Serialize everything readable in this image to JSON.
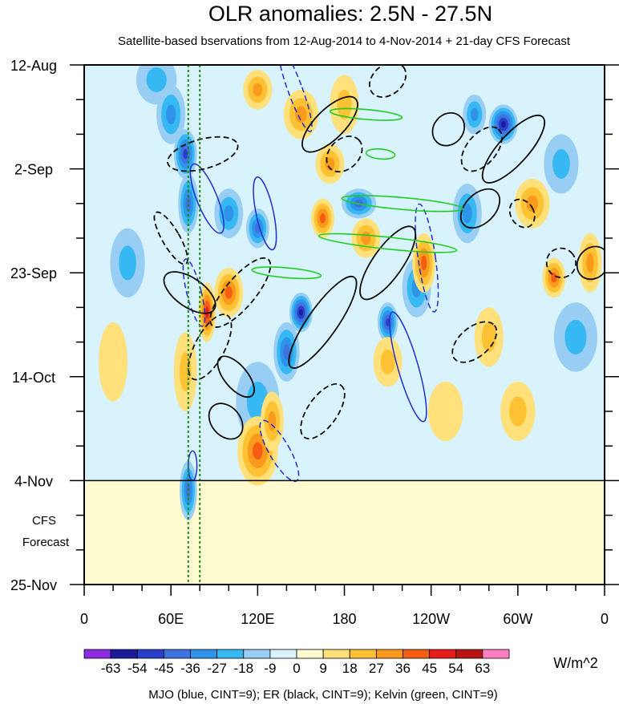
{
  "chart_data": {
    "type": "heatmap",
    "title": "OLR anomalies: 2.5N - 27.5N",
    "subtitle": "Satellite-based bservations from 12-Aug-2014 to 4-Nov-2014 + 21-day CFS Forecast",
    "xlabel": "",
    "ylabel": "",
    "x_ticks": [
      {
        "lon": 0,
        "label": "0"
      },
      {
        "lon": 60,
        "label": "60E"
      },
      {
        "lon": 120,
        "label": "120E"
      },
      {
        "lon": 180,
        "label": "180"
      },
      {
        "lon": 240,
        "label": "120W"
      },
      {
        "lon": 300,
        "label": "60W"
      },
      {
        "lon": 360,
        "label": "0"
      }
    ],
    "xlim": [
      0,
      360
    ],
    "y_ticks": [
      {
        "day": 0,
        "label": "12-Aug"
      },
      {
        "day": 21,
        "label": "2-Sep"
      },
      {
        "day": 42,
        "label": "23-Sep"
      },
      {
        "day": 63,
        "label": "14-Oct"
      },
      {
        "day": 84,
        "label": "4-Nov"
      },
      {
        "day": 105,
        "label": "25-Nov"
      }
    ],
    "ylim_days": [
      0,
      105
    ],
    "forecast_start_day": 84,
    "forecast_label_line1": "CFS",
    "forecast_label_line2": "Forecast",
    "reference_lines_lon": [
      72,
      80
    ],
    "colorbar": {
      "levels": [
        "-63",
        "-54",
        "-45",
        "-36",
        "-27",
        "-18",
        "-9",
        "0",
        "9",
        "18",
        "27",
        "36",
        "45",
        "54",
        "63"
      ],
      "colors": [
        "#8c2be2",
        "#1b1b9c",
        "#2a3fc8",
        "#3d72e0",
        "#2f93ea",
        "#36b8f2",
        "#98cdf4",
        "#d8f3fc",
        "#fffbd0",
        "#ffe07a",
        "#fdc233",
        "#f99a1c",
        "#f45d12",
        "#e51c18",
        "#b81414",
        "#ff80c0"
      ],
      "units": "W/m^2"
    },
    "legend_text": "MJO (blue, CINT=9); ER (black, CINT=9); Kelvin (green, CINT=9)",
    "contour_colors": {
      "mjo": "#1f2fd0",
      "er": "#000000",
      "kelvin": "#22cc22"
    },
    "anomaly_blobs": [
      {
        "lon": 50,
        "day": 3,
        "val": -25,
        "rl": 14,
        "rd": 5
      },
      {
        "lon": 60,
        "day": 10,
        "val": -30,
        "rl": 10,
        "rd": 6
      },
      {
        "lon": 70,
        "day": 18,
        "val": -45,
        "rl": 8,
        "rd": 5
      },
      {
        "lon": 72,
        "day": 28,
        "val": -40,
        "rl": 7,
        "rd": 6
      },
      {
        "lon": 72,
        "day": 86,
        "val": -40,
        "rl": 6,
        "rd": 6
      },
      {
        "lon": 100,
        "day": 30,
        "val": -35,
        "rl": 10,
        "rd": 5
      },
      {
        "lon": 120,
        "day": 33,
        "val": -40,
        "rl": 8,
        "rd": 4
      },
      {
        "lon": 150,
        "day": 50,
        "val": -55,
        "rl": 8,
        "rd": 4
      },
      {
        "lon": 140,
        "day": 58,
        "val": -40,
        "rl": 9,
        "rd": 6
      },
      {
        "lon": 210,
        "day": 52,
        "val": -45,
        "rl": 7,
        "rd": 4
      },
      {
        "lon": 230,
        "day": 45,
        "val": -30,
        "rl": 10,
        "rd": 6
      },
      {
        "lon": 290,
        "day": 12,
        "val": -55,
        "rl": 10,
        "rd": 4
      },
      {
        "lon": 270,
        "day": 10,
        "val": -35,
        "rl": 8,
        "rd": 4
      },
      {
        "lon": 265,
        "day": 30,
        "val": -30,
        "rl": 10,
        "rd": 6
      },
      {
        "lon": 190,
        "day": 28,
        "val": -36,
        "rl": 12,
        "rd": 3
      },
      {
        "lon": 120,
        "day": 68,
        "val": -25,
        "rl": 15,
        "rd": 8
      },
      {
        "lon": 30,
        "day": 40,
        "val": -25,
        "rl": 12,
        "rd": 7
      },
      {
        "lon": 340,
        "day": 55,
        "val": -20,
        "rl": 15,
        "rd": 7
      },
      {
        "lon": 330,
        "day": 20,
        "val": -25,
        "rl": 12,
        "rd": 6
      },
      {
        "lon": 150,
        "day": 10,
        "val": 30,
        "rl": 12,
        "rd": 5
      },
      {
        "lon": 170,
        "day": 20,
        "val": 30,
        "rl": 10,
        "rd": 4
      },
      {
        "lon": 180,
        "day": 8,
        "val": 25,
        "rl": 10,
        "rd": 6
      },
      {
        "lon": 165,
        "day": 31,
        "val": 40,
        "rl": 8,
        "rd": 4
      },
      {
        "lon": 195,
        "day": 35,
        "val": 30,
        "rl": 10,
        "rd": 4
      },
      {
        "lon": 85,
        "day": 50,
        "val": 50,
        "rl": 6,
        "rd": 6
      },
      {
        "lon": 100,
        "day": 46,
        "val": 36,
        "rl": 10,
        "rd": 5
      },
      {
        "lon": 70,
        "day": 62,
        "val": 25,
        "rl": 8,
        "rd": 8
      },
      {
        "lon": 120,
        "day": 78,
        "val": 36,
        "rl": 14,
        "rd": 7
      },
      {
        "lon": 130,
        "day": 72,
        "val": 30,
        "rl": 8,
        "rd": 6
      },
      {
        "lon": 235,
        "day": 40,
        "val": 36,
        "rl": 8,
        "rd": 6
      },
      {
        "lon": 310,
        "day": 28,
        "val": 28,
        "rl": 12,
        "rd": 5
      },
      {
        "lon": 325,
        "day": 43,
        "val": 36,
        "rl": 8,
        "rd": 4
      },
      {
        "lon": 350,
        "day": 40,
        "val": 28,
        "rl": 8,
        "rd": 6
      },
      {
        "lon": 280,
        "day": 55,
        "val": 25,
        "rl": 10,
        "rd": 6
      },
      {
        "lon": 120,
        "day": 5,
        "val": 30,
        "rl": 10,
        "rd": 4
      },
      {
        "lon": 210,
        "day": 60,
        "val": 20,
        "rl": 10,
        "rd": 5
      },
      {
        "lon": 20,
        "day": 60,
        "val": 15,
        "rl": 10,
        "rd": 8
      },
      {
        "lon": 300,
        "day": 70,
        "val": 18,
        "rl": 12,
        "rd": 6
      },
      {
        "lon": 250,
        "day": 70,
        "val": 15,
        "rl": 12,
        "rd": 6
      }
    ],
    "mjo_contours": [
      {
        "lon": 146,
        "day": 5,
        "rl": 5,
        "rd": 9,
        "tilt": -20,
        "dash": true
      },
      {
        "lon": 85,
        "day": 27,
        "rl": 7,
        "rd": 7.5,
        "tilt": -22,
        "dash": false
      },
      {
        "lon": 125,
        "day": 30,
        "rl": 6,
        "rd": 7.5,
        "tilt": -12,
        "dash": false
      },
      {
        "lon": 76,
        "day": 46,
        "rl": 5,
        "rd": 7,
        "tilt": -14,
        "dash": true
      },
      {
        "lon": 237,
        "day": 39,
        "rl": 6,
        "rd": 11,
        "tilt": -8,
        "dash": true
      },
      {
        "lon": 224,
        "day": 61,
        "rl": 7,
        "rd": 11.5,
        "tilt": -16,
        "dash": false
      },
      {
        "lon": 135,
        "day": 78,
        "rl": 7,
        "rd": 7,
        "tilt": -30,
        "dash": true
      },
      {
        "lon": 75,
        "day": 81,
        "rl": 3,
        "rd": 3,
        "tilt": 0,
        "dash": false
      }
    ],
    "er_contours": [
      {
        "lon": 82,
        "day": 18,
        "rl": 25,
        "rd": 3,
        "tilt": -15,
        "dash": true
      },
      {
        "lon": 60,
        "day": 35,
        "rl": 6,
        "rd": 6,
        "tilt": -30,
        "dash": true
      },
      {
        "lon": 73,
        "day": 46,
        "rl": 10,
        "rd": 6,
        "tilt": -55,
        "dash": false
      },
      {
        "lon": 108,
        "day": 46,
        "rl": 30,
        "rd": 3,
        "tilt": -50,
        "dash": true
      },
      {
        "lon": 87,
        "day": 57,
        "rl": 25,
        "rd": 3,
        "tilt": -62,
        "dash": true
      },
      {
        "lon": 105,
        "day": 63,
        "rl": 8,
        "rd": 5,
        "tilt": -40,
        "dash": false
      },
      {
        "lon": 98,
        "day": 72,
        "rl": 10,
        "rd": 4,
        "tilt": -40,
        "dash": false
      },
      {
        "lon": 165,
        "day": 52,
        "rl": 38,
        "rd": 3,
        "tilt": -55,
        "dash": false
      },
      {
        "lon": 170,
        "day": 12,
        "rl": 25,
        "rd": 3,
        "tilt": -45,
        "dash": false
      },
      {
        "lon": 180,
        "day": 18,
        "rl": 14,
        "rd": 3,
        "tilt": -45,
        "dash": true
      },
      {
        "lon": 210,
        "day": 40,
        "rl": 30,
        "rd": 3,
        "tilt": -55,
        "dash": false
      },
      {
        "lon": 165,
        "day": 70,
        "rl": 22,
        "rd": 3,
        "tilt": -55,
        "dash": true
      },
      {
        "lon": 252,
        "day": 13,
        "rl": 12,
        "rd": 3,
        "tilt": -50,
        "dash": false
      },
      {
        "lon": 275,
        "day": 17,
        "rl": 18,
        "rd": 3,
        "tilt": -50,
        "dash": true
      },
      {
        "lon": 297,
        "day": 17,
        "rl": 30,
        "rd": 3,
        "tilt": -48,
        "dash": false
      },
      {
        "lon": 274,
        "day": 29,
        "rl": 16,
        "rd": 3,
        "tilt": -45,
        "dash": false
      },
      {
        "lon": 303,
        "day": 30,
        "rl": 8,
        "rd": 3,
        "tilt": -30,
        "dash": true
      },
      {
        "lon": 330,
        "day": 40,
        "rl": 10,
        "rd": 3,
        "tilt": -45,
        "dash": true
      },
      {
        "lon": 352,
        "day": 40,
        "rl": 12,
        "rd": 3,
        "tilt": -50,
        "dash": false
      },
      {
        "lon": 270,
        "day": 56,
        "rl": 18,
        "rd": 3,
        "tilt": -40,
        "dash": true
      },
      {
        "lon": 210,
        "day": 3,
        "rl": 14,
        "rd": 3,
        "tilt": -40,
        "dash": true
      }
    ],
    "kelvin_contours": [
      {
        "lon": 195,
        "day": 10,
        "rl": 25,
        "rd": 1,
        "tilt": 5
      },
      {
        "lon": 205,
        "day": 18,
        "rl": 10,
        "rd": 1,
        "tilt": 5
      },
      {
        "lon": 220,
        "day": 28,
        "rl": 42,
        "rd": 1.2,
        "tilt": 5
      },
      {
        "lon": 210,
        "day": 36,
        "rl": 48,
        "rd": 1.2,
        "tilt": 6
      },
      {
        "lon": 140,
        "day": 42,
        "rl": 24,
        "rd": 1,
        "tilt": 5
      }
    ]
  }
}
